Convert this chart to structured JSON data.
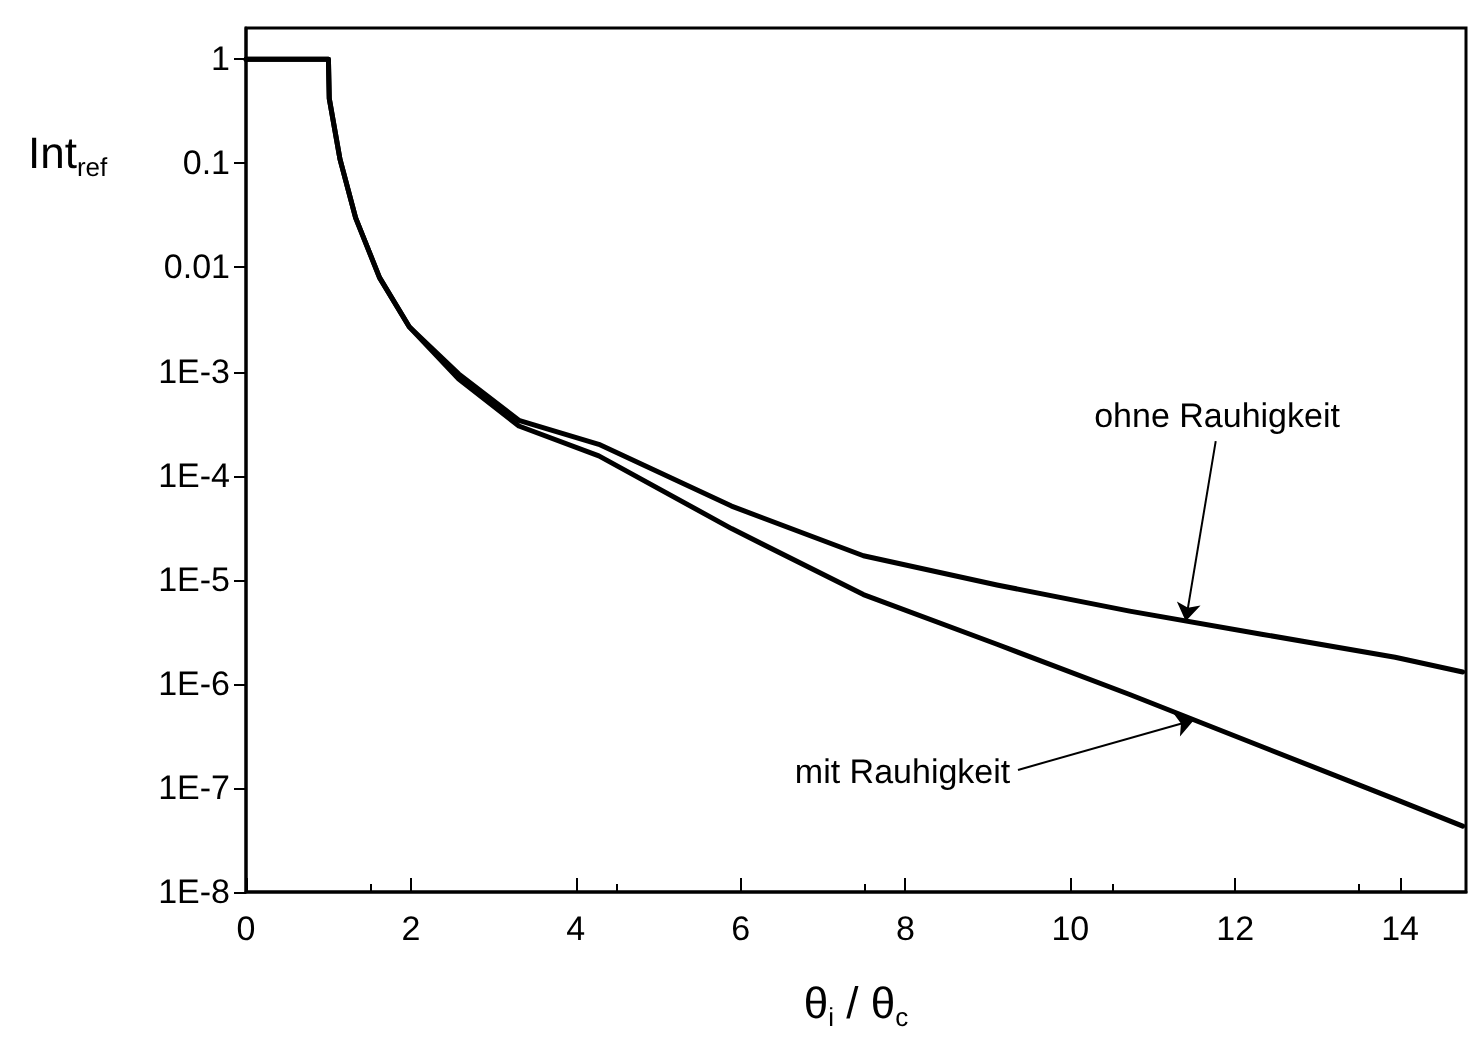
{
  "chart_data": {
    "type": "line",
    "xlabel": "θ$_{i}$ / θ$_{c}$",
    "ylabel": "Int$_{ref}$",
    "xlim": [
      0,
      14.8
    ],
    "xticks": [
      0,
      2,
      4,
      6,
      8,
      10,
      12,
      14
    ],
    "ylim": [
      1e-08,
      2
    ],
    "yticks": [
      {
        "value": 1,
        "label": "1"
      },
      {
        "value": 0.1,
        "label": "0.1"
      },
      {
        "value": 0.01,
        "label": "0.01"
      },
      {
        "value": 0.001,
        "label": "1E-3"
      },
      {
        "value": 0.0001,
        "label": "1E-4"
      },
      {
        "value": 1e-05,
        "label": "1E-5"
      },
      {
        "value": 1e-06,
        "label": "1E-6"
      },
      {
        "value": 1e-07,
        "label": "1E-7"
      },
      {
        "value": 1e-08,
        "label": "1E-8"
      }
    ],
    "log": "y",
    "grid": false,
    "marker": "none",
    "line_style": "solid",
    "x": [
      0,
      0.5,
      1.0,
      1.01,
      1.14,
      1.33,
      1.62,
      1.98,
      2.58,
      3.31,
      4.28,
      5.89,
      7.49,
      9.11,
      10.72,
      12.32,
      13.94,
      14.76
    ],
    "series": [
      {
        "color": "#000000",
        "values": [
          1,
          1,
          1,
          0.42,
          0.11,
          0.03,
          0.008,
          0.0027,
          0.00095,
          0.00034,
          0.0002,
          5.1e-05,
          1.7e-05,
          8.9e-06,
          5e-06,
          3e-06,
          1.8e-06,
          1.3e-06
        ]
      },
      {
        "color": "#000000",
        "values": [
          1,
          1,
          1,
          0.42,
          0.11,
          0.03,
          0.008,
          0.0027,
          0.00085,
          0.0003,
          0.000155,
          3.1e-05,
          7.2e-06,
          2.4e-06,
          7.9e-07,
          2.5e-07,
          7.8e-08,
          4.3e-08
        ]
      }
    ],
    "annotations": [
      {
        "text": "ohne Rauhigkeit",
        "x": 11.4,
        "y": 4e-06
      },
      {
        "text": "mit Rauhigkeit",
        "x": 11.5,
        "y": 4.5e-07
      }
    ]
  }
}
